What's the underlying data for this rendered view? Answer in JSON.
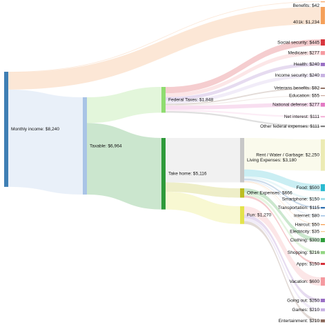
{
  "chart_data": {
    "type": "sankey",
    "nodes": [
      {
        "id": "monthly_income",
        "label": "Monthly income: $8,240",
        "value": 8240,
        "color": "#3f7fb4"
      },
      {
        "id": "benefits",
        "label": "Benefits: $42",
        "value": 42,
        "color": "#f5a05a"
      },
      {
        "id": "k401",
        "label": "401k: $1,234",
        "value": 1234,
        "color": "#f5a05a"
      },
      {
        "id": "taxable",
        "label": "Taxable: $6,964",
        "value": 6964,
        "color": "#a9c4e6"
      },
      {
        "id": "federal_taxes",
        "label": "Federal Taxes: $1,848",
        "value": 1848,
        "color": "#8fdc70"
      },
      {
        "id": "take_home",
        "label": "Take home: $5,116",
        "value": 5116,
        "color": "#2e9a3a"
      },
      {
        "id": "social_security",
        "label": "Social security: $445",
        "value": 445,
        "color": "#d8363e"
      },
      {
        "id": "medicare",
        "label": "Medicare: $277",
        "value": 277,
        "color": "#f59aa0"
      },
      {
        "id": "health",
        "label": "Health: $240",
        "value": 240,
        "color": "#9a6fc4"
      },
      {
        "id": "income_security",
        "label": "Income security: $240",
        "value": 240,
        "color": "#c7b2e2"
      },
      {
        "id": "veterans_benefits",
        "label": "Veterans benefits: $92",
        "value": 92,
        "color": "#8c6a5c"
      },
      {
        "id": "education",
        "label": "Education: $55",
        "value": 55,
        "color": "#c9a79c"
      },
      {
        "id": "national_defense",
        "label": "National defense: $277",
        "value": 277,
        "color": "#e37ac4"
      },
      {
        "id": "net_interest",
        "label": "Net interest: $111",
        "value": 111,
        "color": "#f5b6da"
      },
      {
        "id": "other_federal",
        "label": "Other federal expenses: $111",
        "value": 111,
        "color": "#7f7f7f"
      },
      {
        "id": "living_expenses",
        "label": "Living Expenses: $3,180",
        "value": 3180,
        "color": "#c7c7c7"
      },
      {
        "id": "other_expenses",
        "label": "Other Expenses: $666",
        "value": 666,
        "color": "#bcbd22"
      },
      {
        "id": "fun",
        "label": "Fun: $1,270",
        "value": 1270,
        "color": "#e3e34c"
      },
      {
        "id": "rent",
        "label": "Rent / Water / Garbage: $2,250",
        "value": 2250,
        "color": "#ecebb4"
      },
      {
        "id": "food",
        "label": "Food: $500",
        "value": 500,
        "color": "#2bbad0"
      },
      {
        "id": "smartphone",
        "label": "Smartphone: $150",
        "value": 150,
        "color": "#a6dfe9"
      },
      {
        "id": "transportation",
        "label": "Transportation: $115",
        "value": 115,
        "color": "#2f6fb0"
      },
      {
        "id": "internet",
        "label": "Internet: $80",
        "value": 80,
        "color": "#a3c4e6"
      },
      {
        "id": "haircut",
        "label": "Haircut: $50",
        "value": 50,
        "color": "#f59a4a"
      },
      {
        "id": "electricity",
        "label": "Electricity: $35",
        "value": 35,
        "color": "#f5c98e"
      },
      {
        "id": "clothing",
        "label": "Clothing: $300",
        "value": 300,
        "color": "#2f9e3c"
      },
      {
        "id": "shopping",
        "label": "Shopping: $216",
        "value": 216,
        "color": "#93d683"
      },
      {
        "id": "apps",
        "label": "Apps: $150",
        "value": 150,
        "color": "#d6303a"
      },
      {
        "id": "vacation",
        "label": "Vacation: $600",
        "value": 600,
        "color": "#f59aa0"
      },
      {
        "id": "going_out",
        "label": "Going out: $250",
        "value": 250,
        "color": "#9a6fc4"
      },
      {
        "id": "games",
        "label": "Games: $210",
        "value": 210,
        "color": "#c7b2e2"
      },
      {
        "id": "entertainment",
        "label": "Entertainment: $210",
        "value": 210,
        "color": "#8c6a5c"
      }
    ],
    "links": [
      {
        "source": "monthly_income",
        "target": "benefits",
        "value": 42
      },
      {
        "source": "monthly_income",
        "target": "k401",
        "value": 1234
      },
      {
        "source": "monthly_income",
        "target": "taxable",
        "value": 6964
      },
      {
        "source": "taxable",
        "target": "federal_taxes",
        "value": 1848
      },
      {
        "source": "taxable",
        "target": "take_home",
        "value": 5116
      },
      {
        "source": "federal_taxes",
        "target": "social_security",
        "value": 445
      },
      {
        "source": "federal_taxes",
        "target": "medicare",
        "value": 277
      },
      {
        "source": "federal_taxes",
        "target": "health",
        "value": 240
      },
      {
        "source": "federal_taxes",
        "target": "income_security",
        "value": 240
      },
      {
        "source": "federal_taxes",
        "target": "veterans_benefits",
        "value": 92
      },
      {
        "source": "federal_taxes",
        "target": "education",
        "value": 55
      },
      {
        "source": "federal_taxes",
        "target": "national_defense",
        "value": 277
      },
      {
        "source": "federal_taxes",
        "target": "net_interest",
        "value": 111
      },
      {
        "source": "federal_taxes",
        "target": "other_federal",
        "value": 111
      },
      {
        "source": "take_home",
        "target": "living_expenses",
        "value": 3180
      },
      {
        "source": "take_home",
        "target": "other_expenses",
        "value": 666
      },
      {
        "source": "take_home",
        "target": "fun",
        "value": 1270
      },
      {
        "source": "living_expenses",
        "target": "rent",
        "value": 2250
      },
      {
        "source": "living_expenses",
        "target": "food",
        "value": 500
      },
      {
        "source": "living_expenses",
        "target": "smartphone",
        "value": 150
      },
      {
        "source": "living_expenses",
        "target": "transportation",
        "value": 115
      },
      {
        "source": "living_expenses",
        "target": "internet",
        "value": 80
      },
      {
        "source": "living_expenses",
        "target": "haircut",
        "value": 50
      },
      {
        "source": "living_expenses",
        "target": "electricity",
        "value": 35
      },
      {
        "source": "other_expenses",
        "target": "clothing",
        "value": 300
      },
      {
        "source": "other_expenses",
        "target": "shopping",
        "value": 216
      },
      {
        "source": "other_expenses",
        "target": "apps",
        "value": 150
      },
      {
        "source": "fun",
        "target": "vacation",
        "value": 600
      },
      {
        "source": "fun",
        "target": "going_out",
        "value": 250
      },
      {
        "source": "fun",
        "target": "games",
        "value": 210
      },
      {
        "source": "fun",
        "target": "entertainment",
        "value": 210
      }
    ]
  }
}
